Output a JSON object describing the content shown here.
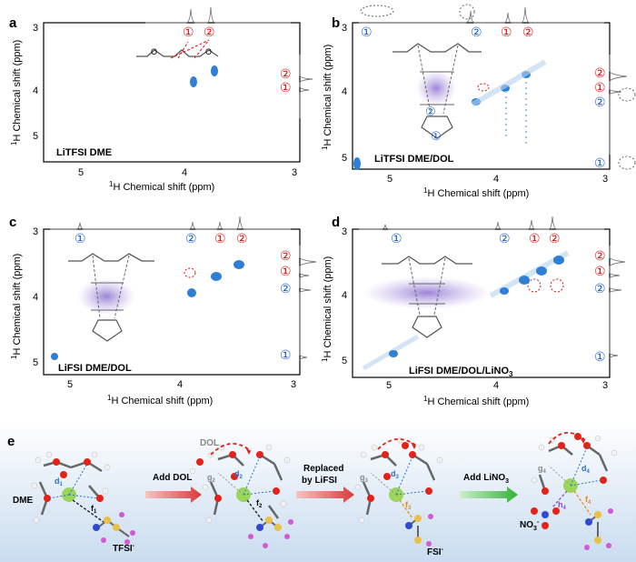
{
  "panels": [
    {
      "letter": "a",
      "label": "LiTFSI DME",
      "top_numbers": [
        {
          "n": "①",
          "c": "red"
        },
        {
          "n": "②",
          "c": "red"
        }
      ],
      "side_numbers": [
        {
          "n": "②",
          "c": "red"
        },
        {
          "n": "①",
          "c": "red"
        }
      ]
    },
    {
      "letter": "b",
      "label": "LiTFSI DME/DOL",
      "top_numbers": [
        {
          "n": "①",
          "c": "blue"
        },
        {
          "n": "②",
          "c": "blue"
        },
        {
          "n": "①",
          "c": "red"
        },
        {
          "n": "②",
          "c": "red"
        }
      ],
      "side_numbers": [
        {
          "n": "②",
          "c": "red"
        },
        {
          "n": "①",
          "c": "red"
        },
        {
          "n": "②",
          "c": "blue"
        },
        {
          "n": "①",
          "c": "blue"
        }
      ]
    },
    {
      "letter": "c",
      "label": "LiFSI DME/DOL",
      "top_numbers": [
        {
          "n": "①",
          "c": "blue"
        },
        {
          "n": "②",
          "c": "blue"
        },
        {
          "n": "①",
          "c": "red"
        },
        {
          "n": "②",
          "c": "red"
        }
      ],
      "side_numbers": [
        {
          "n": "②",
          "c": "red"
        },
        {
          "n": "①",
          "c": "red"
        },
        {
          "n": "②",
          "c": "blue"
        },
        {
          "n": "①",
          "c": "blue"
        }
      ]
    },
    {
      "letter": "d",
      "label": "LiFSI DME/DOL/LiNO",
      "label_sub": "3",
      "top_numbers": [
        {
          "n": "①",
          "c": "blue"
        },
        {
          "n": "②",
          "c": "blue"
        },
        {
          "n": "①",
          "c": "red"
        },
        {
          "n": "②",
          "c": "red"
        }
      ],
      "side_numbers": [
        {
          "n": "②",
          "c": "red"
        },
        {
          "n": "①",
          "c": "red"
        },
        {
          "n": "②",
          "c": "blue"
        },
        {
          "n": "①",
          "c": "blue"
        }
      ]
    }
  ],
  "axes": {
    "xlabel": "Chemical shift (ppm)",
    "ylabel": "Chemical shift (ppm)",
    "x_ticks": [
      "5",
      "4",
      "3"
    ],
    "y_ticks": [
      "3",
      "4",
      "5"
    ],
    "h_prefix": "1",
    "h_letter": "H"
  },
  "panel_e": {
    "letter": "e",
    "step_labels": {
      "add_dol": "Add DOL",
      "replaced": "Replaced",
      "by_lifsi": "by LiFSI",
      "add_lino3": "Add LiNO",
      "add_lino3_sub": "3"
    },
    "species": {
      "dme": "DME",
      "tfsi": "TFSI",
      "fsi": "FSI",
      "dol": "DOL",
      "no3": "NO",
      "no3_sub": "3",
      "minus": "-"
    },
    "distances": {
      "d1": "d",
      "d1s": "1",
      "f1": "f",
      "f1s": "1",
      "d2": "d",
      "d2s": "2",
      "f2": "f",
      "f2s": "2",
      "g2": "g",
      "g2s": "2",
      "d3": "d",
      "d3s": "3",
      "f3": "f",
      "f3s": "3",
      "g3": "g",
      "g3s": "3",
      "d4": "d",
      "d4s": "4",
      "f4": "f",
      "f4s": "4",
      "g4": "g",
      "g4s": "4",
      "h4": "h",
      "h4s": "4"
    }
  },
  "colors": {
    "blue": "#1f5fc2",
    "red": "#d11",
    "spot": "#2f7fd6",
    "purple": "#9b7fd6"
  }
}
